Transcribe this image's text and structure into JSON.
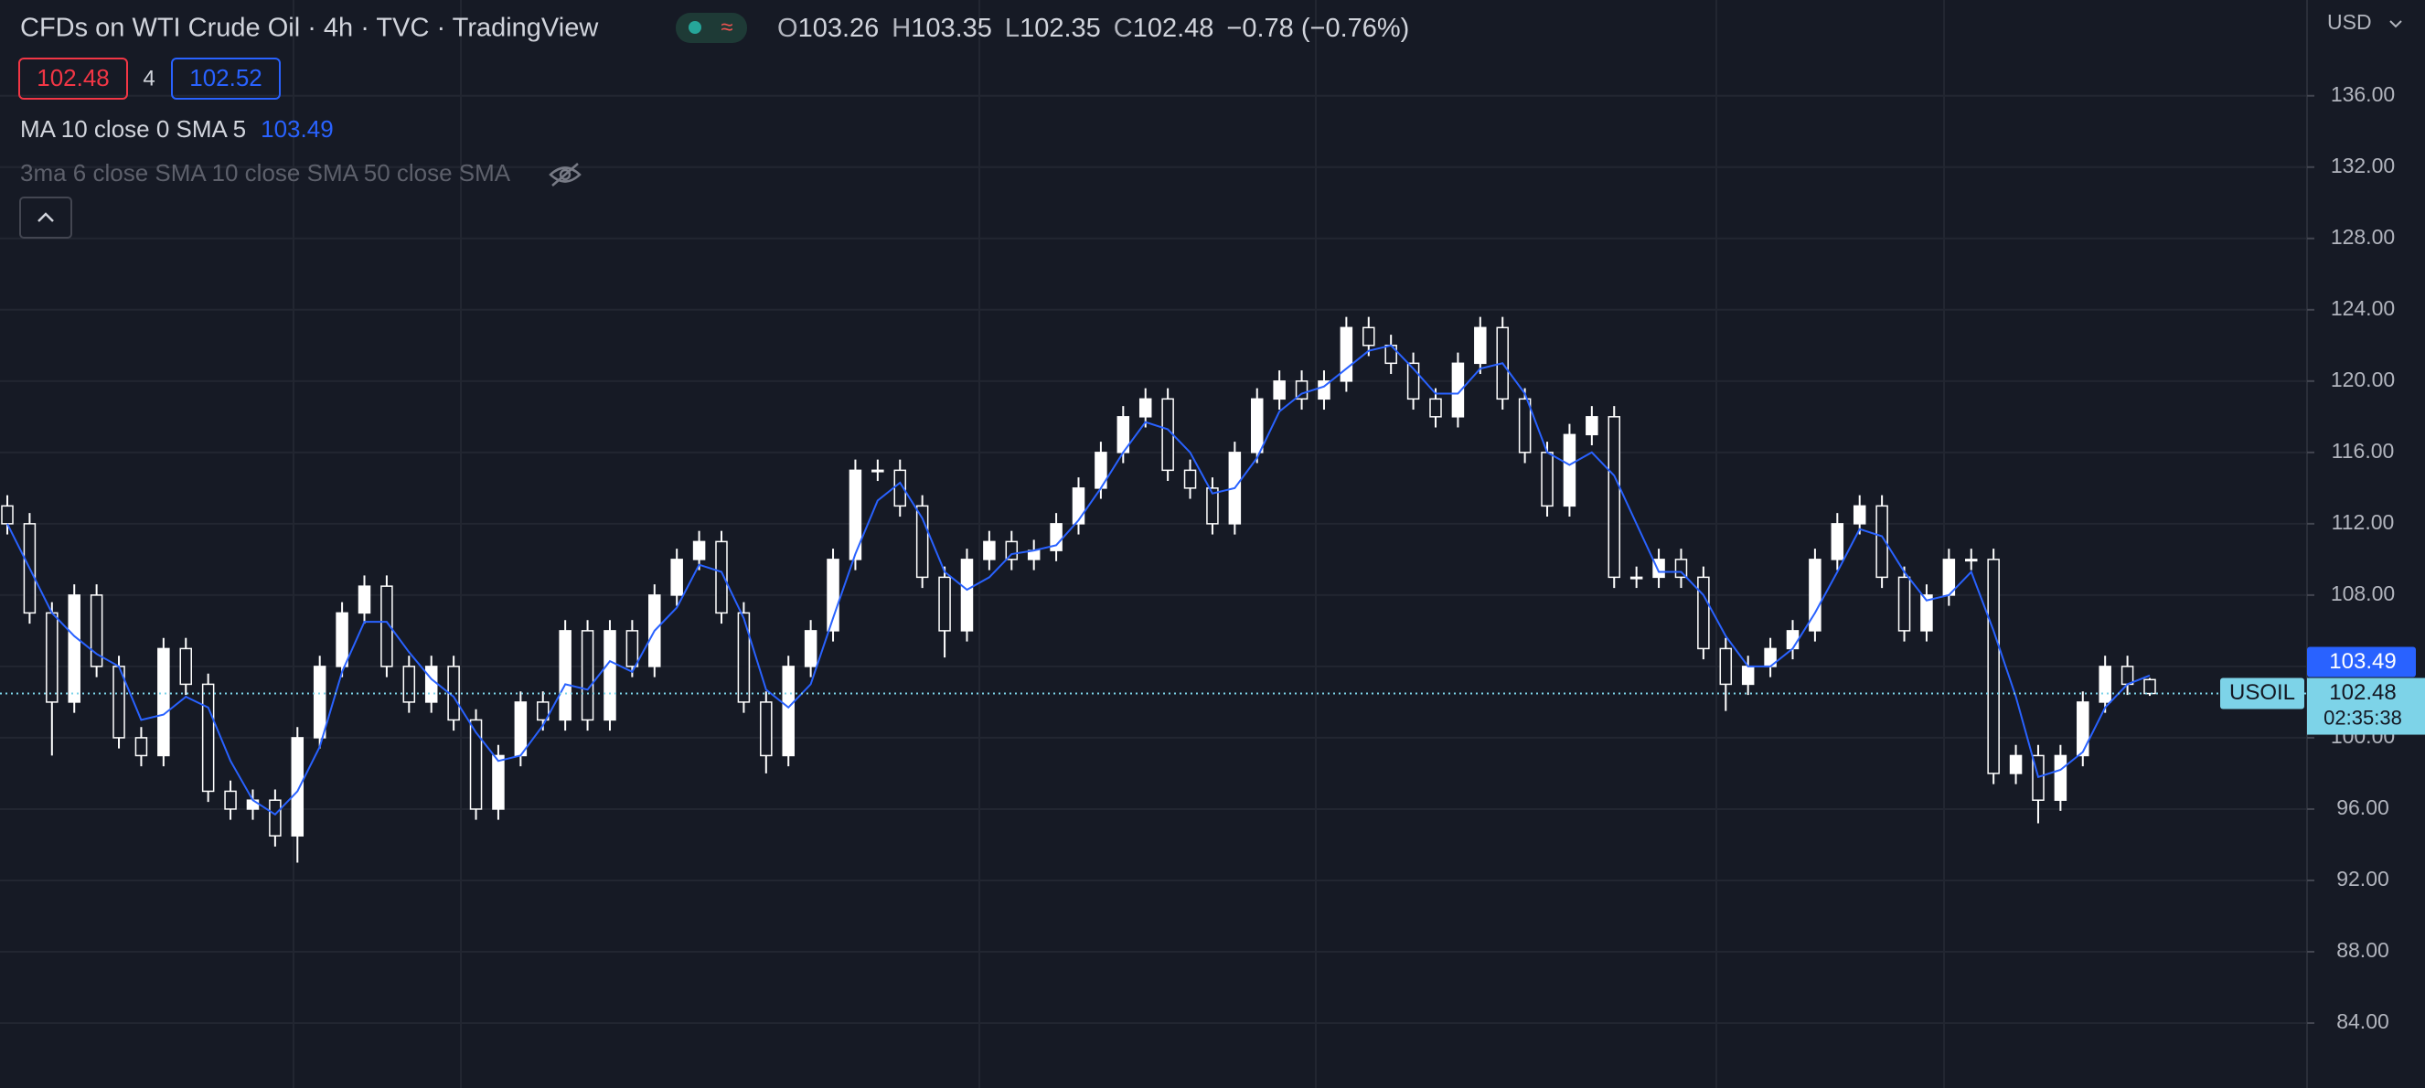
{
  "chart_data": {
    "type": "candlestick",
    "title": "CFDs on WTI Crude Oil · 4h · TVC · TradingView",
    "ohlc_letters": [
      "O",
      "H",
      "L",
      "C"
    ],
    "change": "−0.78 (−0.76%)",
    "sell_price": 102.48,
    "quantity": 4,
    "buy_price": 102.52,
    "hidden_indicator": "3ma 6 close SMA 10 close SMA 50 close SMA",
    "currency": "USD",
    "symbol": "USOIL",
    "countdown": "02:35:38",
    "up_color": "#ffffff",
    "down_color": "#ffffff",
    "open": [
      113,
      112,
      107,
      102,
      108,
      104,
      100,
      99,
      105,
      103,
      97,
      96,
      96.5,
      94.5,
      100,
      104,
      107,
      108.5,
      104,
      102,
      104,
      101,
      96,
      99,
      102,
      101,
      106,
      101,
      106,
      104,
      108,
      110,
      111,
      107,
      102,
      99,
      104,
      106,
      110,
      115,
      115,
      113,
      109,
      106,
      110,
      111,
      110,
      110.5,
      112,
      114,
      116,
      118,
      119,
      115,
      114,
      112,
      116,
      119,
      120,
      119,
      120,
      123,
      122,
      121,
      119,
      118,
      121,
      123,
      119,
      116,
      113,
      117,
      118,
      109,
      109,
      110,
      109,
      105,
      103,
      104,
      105,
      106,
      110,
      112,
      113,
      109,
      106,
      108,
      110,
      110,
      98,
      99,
      96.5,
      99,
      102,
      104,
      103.26
    ],
    "high": [
      113.6,
      112.6,
      107.6,
      108.6,
      108.6,
      104.6,
      100.6,
      105.6,
      105.6,
      103.6,
      97.6,
      97.1,
      97.1,
      100.6,
      104.6,
      107.6,
      109.1,
      109.1,
      104.6,
      104.6,
      104.6,
      101.6,
      99.6,
      102.6,
      102.6,
      106.6,
      106.6,
      106.6,
      106.6,
      108.6,
      110.6,
      111.6,
      111.6,
      107.6,
      102.6,
      104.6,
      106.6,
      110.6,
      115.6,
      115.6,
      115.6,
      113.6,
      109.6,
      110.6,
      111.6,
      111.6,
      111.1,
      112.6,
      114.6,
      116.6,
      118.6,
      119.6,
      119.6,
      115.6,
      114.6,
      116.6,
      119.6,
      120.6,
      120.6,
      120.6,
      123.6,
      123.6,
      122.6,
      121.6,
      119.6,
      121.6,
      123.6,
      123.6,
      119.6,
      116.6,
      117.6,
      118.6,
      118.6,
      109.6,
      110.6,
      110.6,
      109.6,
      105.6,
      104.6,
      105.6,
      106.6,
      110.6,
      112.6,
      113.6,
      113.6,
      109.6,
      108.6,
      110.6,
      110.6,
      110.6,
      99.6,
      99.6,
      99.6,
      102.6,
      104.6,
      104.6,
      103.35
    ],
    "low": [
      111.4,
      106.4,
      99,
      101.4,
      103.4,
      99.4,
      98.4,
      98.4,
      102.4,
      96.4,
      95.4,
      95.4,
      93.9,
      93,
      99.4,
      103.4,
      106.4,
      103.4,
      101.4,
      101.4,
      100.4,
      95.4,
      95.4,
      98.4,
      100.4,
      100.4,
      100.4,
      100.4,
      103.4,
      103.4,
      107.4,
      109.4,
      106.4,
      101.4,
      98,
      98.4,
      103.4,
      105.4,
      109.4,
      114.4,
      112.4,
      108.4,
      104.5,
      105.4,
      109.4,
      109.4,
      109.4,
      109.9,
      111.4,
      113.4,
      115.4,
      117.4,
      114.4,
      113.4,
      111.4,
      111.4,
      115.4,
      118.4,
      118.4,
      118.4,
      119.4,
      121.4,
      120.4,
      118.4,
      117.4,
      117.4,
      120.4,
      118.4,
      115.4,
      112.4,
      112.4,
      116.4,
      108.4,
      108.4,
      108.4,
      108.4,
      104.4,
      101.5,
      102.4,
      103.4,
      104.4,
      105.4,
      109.4,
      111.4,
      108.4,
      105.4,
      105.4,
      107.4,
      109.4,
      97.4,
      97.4,
      95.2,
      95.9,
      98.4,
      101.4,
      102.4,
      102.35
    ],
    "close": [
      112,
      107,
      102,
      108,
      104,
      100,
      99,
      105,
      103,
      97,
      96,
      96.5,
      94.5,
      100,
      104,
      107,
      108.5,
      104,
      102,
      104,
      101,
      96,
      99,
      102,
      101,
      106,
      101,
      106,
      104,
      108,
      110,
      111,
      107,
      102,
      99,
      104,
      106,
      110,
      115,
      115,
      113,
      109,
      106,
      110,
      111,
      110,
      110.5,
      112,
      114,
      116,
      118,
      119,
      115,
      114,
      112,
      116,
      119,
      120,
      119,
      120,
      123,
      122,
      121,
      119,
      118,
      121,
      123,
      119,
      116,
      113,
      117,
      118,
      109,
      109,
      110,
      109,
      105,
      103,
      104,
      105,
      106,
      110,
      112,
      113,
      109,
      106,
      108,
      110,
      110,
      98,
      99,
      96.5,
      99,
      102,
      104,
      103,
      102.48
    ],
    "series": [
      {
        "name": "MA 10 close 0 SMA 5",
        "color": "#2962ff",
        "values": [
          112,
          109.5,
          107,
          105.7,
          104.7,
          104,
          101,
          101.3,
          102.3,
          101.7,
          98.7,
          96.5,
          95.7,
          97,
          99.5,
          103.7,
          106.5,
          106.5,
          104.8,
          103.3,
          102.3,
          100.3,
          98.7,
          99,
          100.7,
          103,
          102.7,
          104.3,
          103.7,
          106,
          107.3,
          109.7,
          109.3,
          106.7,
          102.7,
          101.7,
          103,
          106.7,
          110.3,
          113.3,
          114.3,
          112.3,
          109.3,
          108.3,
          109,
          110.3,
          110.5,
          110.8,
          112.2,
          114,
          116,
          117.7,
          117.3,
          116,
          113.7,
          114,
          115.7,
          118.3,
          119.3,
          119.7,
          120.7,
          121.7,
          122,
          120.7,
          119.3,
          119.3,
          120.7,
          121,
          119.3,
          116,
          115.3,
          116,
          114.7,
          112,
          109.3,
          109.3,
          108,
          105.7,
          104,
          104,
          105,
          107,
          109.3,
          111.7,
          111.3,
          109.3,
          107.7,
          108,
          109.3,
          106,
          102.3,
          97.8,
          98.2,
          99.2,
          101.7,
          103,
          103.49
        ]
      }
    ],
    "ylim": [
      80.36,
      141.37
    ],
    "yticks": [
      {
        "value": 84,
        "label": "84.00"
      },
      {
        "value": 88,
        "label": "88.00"
      },
      {
        "value": 92,
        "label": "92.00"
      },
      {
        "value": 96,
        "label": "96.00"
      },
      {
        "value": 100,
        "label": "100.00"
      },
      {
        "value": 104,
        "label": "104.00"
      },
      {
        "value": 108,
        "label": "108.00"
      },
      {
        "value": 112,
        "label": "112.00"
      },
      {
        "value": 116,
        "label": "116.00"
      },
      {
        "value": 120,
        "label": "120.00"
      },
      {
        "value": 124,
        "label": "124.00"
      },
      {
        "value": 128,
        "label": "128.00"
      },
      {
        "value": 132,
        "label": "132.00"
      },
      {
        "value": 136,
        "label": "136.00"
      }
    ],
    "grid": true
  }
}
